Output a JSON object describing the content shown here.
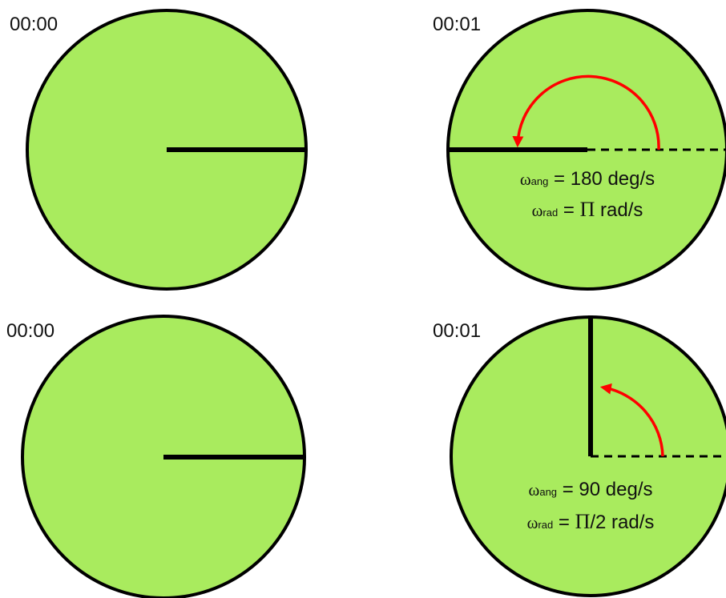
{
  "colors": {
    "disk_fill": "#a9eb5e",
    "outline": "#000000",
    "arrow": "#ff0000",
    "background": "#ffffff"
  },
  "panels": [
    {
      "time": "00:00",
      "formula_lines": []
    },
    {
      "time": "00:01",
      "formula_lines": [
        {
          "symbol": "ω",
          "sub": "ang",
          "eq": " = ",
          "pi": "",
          "rest": "180 deg/s"
        },
        {
          "symbol": "ω",
          "sub": "rad",
          "eq": " = ",
          "pi": "Π",
          "rest": " rad/s"
        }
      ]
    },
    {
      "time": "00:00",
      "formula_lines": []
    },
    {
      "time": "00:01",
      "formula_lines": [
        {
          "symbol": "ω",
          "sub": "ang",
          "eq": " = ",
          "pi": "",
          "rest": "90 deg/s"
        },
        {
          "symbol": "ω",
          "sub": "rad",
          "eq": " = ",
          "pi": "Π",
          "rest": "/2 rad/s"
        }
      ]
    }
  ]
}
